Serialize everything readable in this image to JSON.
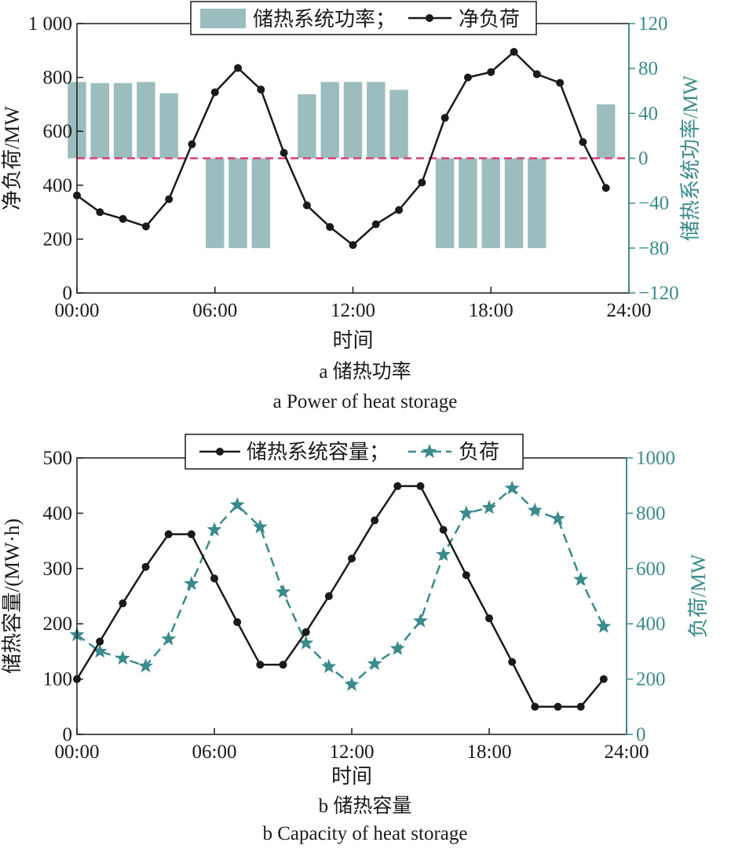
{
  "colors": {
    "ink": "#1a1a1a",
    "teal": "#3b8a8c",
    "bar": "#9cbdbd",
    "zero_line": "#d6417a"
  },
  "panel_a": {
    "caption_cn": "a 储热功率",
    "caption_en": "a  Power of heat storage",
    "legend": {
      "bar_label": "储热系统功率；",
      "line_label": "净负荷"
    }
  },
  "panel_b": {
    "caption_cn": "b 储热容量",
    "caption_en": "b  Capacity of heat storage",
    "legend": {
      "solid_label": "储热系统容量；",
      "dashed_label": "负荷"
    }
  },
  "chart_data": [
    {
      "type": "bar+line",
      "xlabel": "时间",
      "ylabel_left": "净负荷/MW",
      "ylabel_right": "储热系统功率/MW",
      "x_tick_labels": [
        "00:00",
        "06:00",
        "12:00",
        "18:00",
        "24:00"
      ],
      "xlim": [
        0,
        24
      ],
      "ylim_left": [
        0,
        1000
      ],
      "yticks_left": [
        0,
        200,
        400,
        600,
        800,
        1000
      ],
      "ytick_labels_left": [
        "0",
        "200",
        "400",
        "600",
        "800",
        "1 000"
      ],
      "ylim_right": [
        -120,
        120
      ],
      "yticks_right": [
        -120,
        -80,
        -40,
        0,
        40,
        80,
        120
      ],
      "ytick_labels_right": [
        "−120",
        "−80",
        "−40",
        "0",
        "40",
        "80",
        "120"
      ],
      "hours": [
        0,
        1,
        2,
        3,
        4,
        5,
        6,
        7,
        8,
        9,
        10,
        11,
        12,
        13,
        14,
        15,
        16,
        17,
        18,
        19,
        20,
        21,
        22,
        23
      ],
      "series": [
        {
          "name": "储热系统功率",
          "kind": "bar",
          "axis": "right",
          "values": [
            68,
            67,
            67,
            68,
            58,
            0,
            -80,
            -80,
            -80,
            0,
            57,
            68,
            68,
            68,
            61,
            0,
            -80,
            -80,
            -80,
            -80,
            -80,
            0,
            0,
            48
          ]
        },
        {
          "name": "净负荷",
          "kind": "line-marker",
          "axis": "left",
          "values": [
            362,
            300,
            275,
            247,
            348,
            552,
            745,
            835,
            755,
            520,
            325,
            245,
            178,
            255,
            308,
            410,
            650,
            800,
            820,
            895,
            812,
            780,
            560,
            390
          ]
        }
      ],
      "zero_reference": {
        "axis": "right",
        "value": 0,
        "style": "dashed"
      },
      "legend_position": "top-center"
    },
    {
      "type": "line",
      "xlabel": "时间",
      "ylabel_left": "储热容量/(MW·h)",
      "ylabel_right": "负荷/MW",
      "x_tick_labels": [
        "00:00",
        "06:00",
        "12:00",
        "18:00",
        "24:00"
      ],
      "xlim": [
        0,
        24
      ],
      "ylim_left": [
        0,
        500
      ],
      "yticks_left": [
        0,
        100,
        200,
        300,
        400,
        500
      ],
      "ytick_labels_left": [
        "0",
        "100",
        "200",
        "300",
        "400",
        "500"
      ],
      "ylim_right": [
        0,
        1000
      ],
      "yticks_right": [
        0,
        200,
        400,
        600,
        800,
        1000
      ],
      "ytick_labels_right": [
        "0",
        "200",
        "400",
        "600",
        "800",
        "1000"
      ],
      "hours": [
        0,
        1,
        2,
        3,
        4,
        5,
        6,
        7,
        8,
        9,
        10,
        11,
        12,
        13,
        14,
        15,
        16,
        17,
        18,
        19,
        20,
        21,
        22,
        23
      ],
      "series": [
        {
          "name": "储热系统容量",
          "kind": "solid-dot",
          "axis": "left",
          "values": [
            100,
            168,
            237,
            303,
            362,
            362,
            282,
            203,
            126,
            126,
            185,
            250,
            318,
            387,
            449,
            449,
            370,
            288,
            210,
            131,
            50,
            50,
            50,
            100
          ]
        },
        {
          "name": "负荷",
          "kind": "dashed-star",
          "axis": "right",
          "values": [
            360,
            300,
            275,
            247,
            345,
            545,
            740,
            830,
            750,
            515,
            330,
            245,
            180,
            255,
            310,
            410,
            650,
            800,
            820,
            890,
            810,
            780,
            560,
            390
          ]
        }
      ],
      "legend_position": "top-center"
    }
  ]
}
